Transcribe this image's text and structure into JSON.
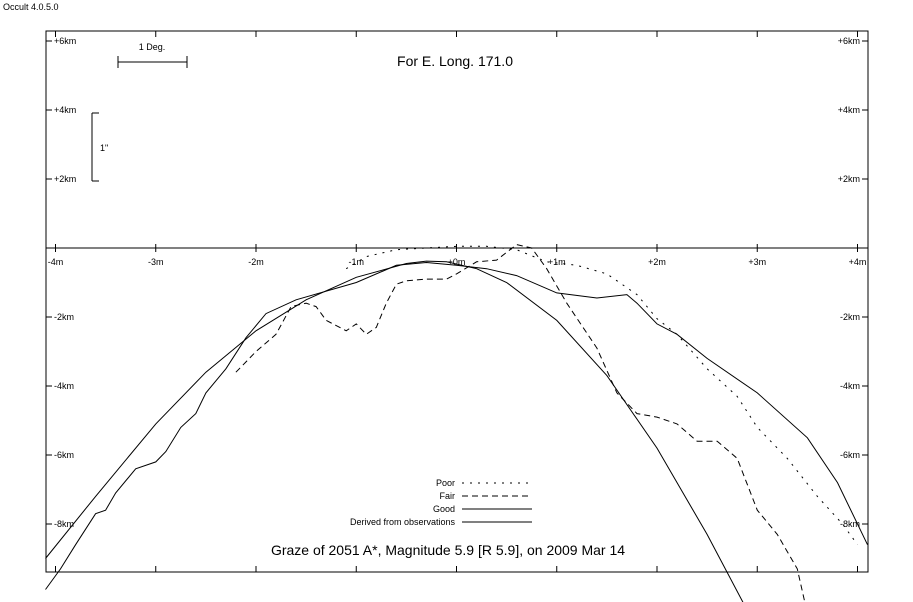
{
  "window": {
    "app_version": "Occult 4.0.5.0"
  },
  "chart_data": {
    "type": "line",
    "title": "Graze of  2051 A*,  Magnitude 5.9 [R 5.9],  on 2009 Mar 14",
    "subtitle": "For E. Long. 171.0",
    "xlim": [
      -4.1,
      4.1
    ],
    "ylim": [
      -9.6,
      6.2
    ],
    "x_ticks": [
      {
        "v": -4,
        "label": "-4m"
      },
      {
        "v": -3,
        "label": "-3m"
      },
      {
        "v": -2,
        "label": "-2m"
      },
      {
        "v": -1,
        "label": "-1m"
      },
      {
        "v": 0,
        "label": "+0m"
      },
      {
        "v": 1,
        "label": "+1m"
      },
      {
        "v": 2,
        "label": "+2m"
      },
      {
        "v": 3,
        "label": "+3m"
      },
      {
        "v": 4,
        "label": "+4m"
      }
    ],
    "y_ticks": [
      {
        "v": 6,
        "label": "+6km"
      },
      {
        "v": 4,
        "label": "+4km"
      },
      {
        "v": 2,
        "label": "+2km"
      },
      {
        "v": -2,
        "label": "-2km"
      },
      {
        "v": -4,
        "label": "-4km"
      },
      {
        "v": -6,
        "label": "-6km"
      },
      {
        "v": -8,
        "label": "-8km"
      }
    ],
    "scale_bars": {
      "degree_label": "1 Deg.",
      "arcsec_label": "1\""
    },
    "legend": [
      {
        "label": "Poor",
        "style": "poor"
      },
      {
        "label": "Fair",
        "style": "fair"
      },
      {
        "label": "Good",
        "style": "good"
      },
      {
        "label": "Derived from observations",
        "style": "derived"
      }
    ],
    "series": [
      {
        "style": "derived",
        "points": [
          [
            -4.1,
            -9.0
          ],
          [
            -3.6,
            -7.2
          ],
          [
            -3.0,
            -5.1
          ],
          [
            -2.5,
            -3.6
          ],
          [
            -2.0,
            -2.4
          ],
          [
            -1.5,
            -1.5
          ],
          [
            -1.0,
            -0.85
          ],
          [
            -0.5,
            -0.45
          ],
          [
            -0.3,
            -0.38
          ],
          [
            -0.1,
            -0.4
          ],
          [
            0.2,
            -0.6
          ],
          [
            0.5,
            -1.0
          ],
          [
            1.0,
            -2.1
          ],
          [
            1.5,
            -3.7
          ],
          [
            2.0,
            -5.8
          ],
          [
            2.5,
            -8.3
          ],
          [
            2.9,
            -10.5
          ]
        ]
      },
      {
        "style": "good",
        "points": [
          [
            -4.1,
            -9.9
          ],
          [
            -3.95,
            -9.3
          ],
          [
            -3.8,
            -8.6
          ],
          [
            -3.6,
            -7.7
          ],
          [
            -3.5,
            -7.6
          ],
          [
            -3.4,
            -7.1
          ],
          [
            -3.2,
            -6.4
          ],
          [
            -3.0,
            -6.2
          ],
          [
            -2.9,
            -5.9
          ],
          [
            -2.75,
            -5.2
          ],
          [
            -2.6,
            -4.8
          ],
          [
            -2.5,
            -4.2
          ],
          [
            -2.3,
            -3.5
          ],
          [
            -2.1,
            -2.6
          ],
          [
            -1.9,
            -1.9
          ],
          [
            -1.6,
            -1.5
          ],
          [
            -1.0,
            -1.0
          ],
          [
            -0.6,
            -0.5
          ],
          [
            -0.3,
            -0.42
          ],
          [
            0.0,
            -0.5
          ],
          [
            0.3,
            -0.6
          ],
          [
            0.6,
            -0.8
          ],
          [
            1.0,
            -1.3
          ],
          [
            1.4,
            -1.45
          ],
          [
            1.7,
            -1.35
          ],
          [
            1.8,
            -1.6
          ],
          [
            2.0,
            -2.2
          ],
          [
            2.2,
            -2.5
          ],
          [
            2.5,
            -3.2
          ],
          [
            3.0,
            -4.2
          ],
          [
            3.5,
            -5.5
          ],
          [
            3.8,
            -6.8
          ],
          [
            4.1,
            -8.6
          ]
        ]
      },
      {
        "style": "fair",
        "points": [
          [
            -2.2,
            -3.6
          ],
          [
            -2.1,
            -3.3
          ],
          [
            -2.0,
            -3.0
          ],
          [
            -1.8,
            -2.5
          ],
          [
            -1.65,
            -1.7
          ],
          [
            -1.5,
            -1.6
          ],
          [
            -1.4,
            -1.7
          ],
          [
            -1.3,
            -2.1
          ],
          [
            -1.1,
            -2.4
          ],
          [
            -1.0,
            -2.2
          ],
          [
            -0.9,
            -2.5
          ],
          [
            -0.8,
            -2.3
          ],
          [
            -0.7,
            -1.6
          ],
          [
            -0.6,
            -1.05
          ],
          [
            -0.5,
            -0.95
          ],
          [
            -0.3,
            -0.9
          ],
          [
            -0.1,
            -0.9
          ],
          [
            0.0,
            -0.75
          ],
          [
            0.2,
            -0.4
          ],
          [
            0.4,
            -0.35
          ],
          [
            0.6,
            0.1
          ],
          [
            0.75,
            0.0
          ],
          [
            0.9,
            -0.6
          ],
          [
            1.1,
            -1.6
          ],
          [
            1.4,
            -2.9
          ],
          [
            1.6,
            -4.2
          ],
          [
            1.8,
            -4.8
          ],
          [
            2.0,
            -4.9
          ],
          [
            2.2,
            -5.1
          ],
          [
            2.4,
            -5.6
          ],
          [
            2.6,
            -5.6
          ],
          [
            2.8,
            -6.1
          ],
          [
            3.0,
            -7.6
          ],
          [
            3.2,
            -8.3
          ],
          [
            3.4,
            -9.3
          ],
          [
            3.5,
            -10.6
          ]
        ]
      },
      {
        "style": "poor",
        "points": [
          [
            -1.1,
            -0.6
          ],
          [
            -0.9,
            -0.25
          ],
          [
            -0.6,
            -0.05
          ],
          [
            -0.3,
            0.0
          ],
          [
            0.0,
            0.05
          ],
          [
            0.3,
            0.05
          ],
          [
            0.6,
            -0.05
          ],
          [
            0.9,
            -0.4
          ],
          [
            1.2,
            -0.5
          ],
          [
            1.5,
            -0.75
          ],
          [
            1.8,
            -1.35
          ],
          [
            2.0,
            -2.05
          ],
          [
            2.2,
            -2.5
          ],
          [
            2.5,
            -3.5
          ],
          [
            2.8,
            -4.3
          ],
          [
            3.0,
            -5.2
          ],
          [
            3.3,
            -6.1
          ],
          [
            3.6,
            -7.2
          ],
          [
            3.85,
            -8.0
          ],
          [
            4.0,
            -8.6
          ]
        ]
      }
    ]
  }
}
